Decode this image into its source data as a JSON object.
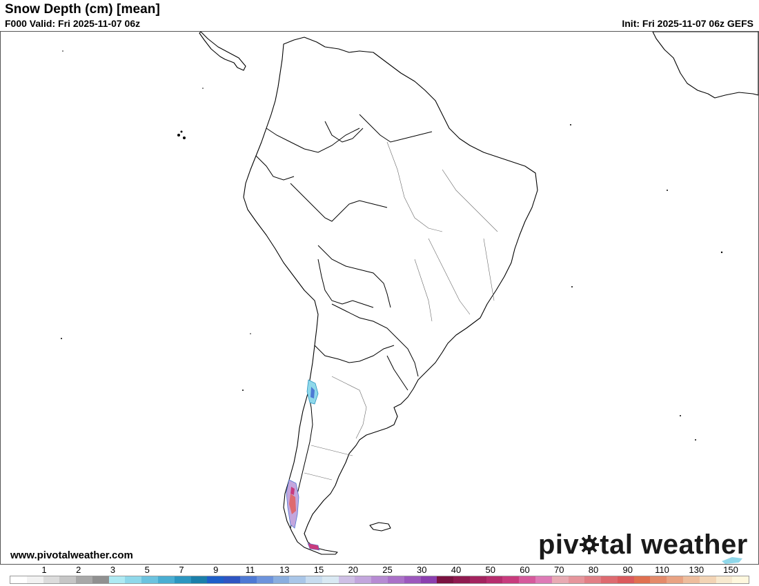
{
  "header": {
    "title": "Snow Depth (cm) [mean]",
    "valid": "F000 Valid: Fri 2025-11-07 06z",
    "init": "Init: Fri 2025-11-07 06z GEFS"
  },
  "footer": {
    "site": "www.pivotalweather.com",
    "brand_left": "piv",
    "brand_right": "tal weather"
  },
  "colorbar": {
    "labels": [
      "1",
      "2",
      "3",
      "5",
      "7",
      "9",
      "11",
      "13",
      "15",
      "20",
      "25",
      "30",
      "40",
      "50",
      "60",
      "70",
      "80",
      "90",
      "110",
      "130",
      "150"
    ],
    "colors": [
      "#ffffff",
      "#f2f2f2",
      "#dcdcdc",
      "#c6c6c6",
      "#a8a8a8",
      "#909090",
      "#aeeaf3",
      "#8fd8ea",
      "#6cc3df",
      "#4aaed2",
      "#2c96c0",
      "#1b7faa",
      "#1e5fc9",
      "#2f55c2",
      "#4e79d4",
      "#6d93dc",
      "#8aaedf",
      "#a9c6e8",
      "#c8dcef",
      "#d9e9f3",
      "#cfc0e6",
      "#c3a6dd",
      "#b78bd3",
      "#aa71c8",
      "#9c58bd",
      "#8b3faf",
      "#7a1240",
      "#8f1a4f",
      "#a3235e",
      "#b62d6d",
      "#c83b7d",
      "#d65a9c",
      "#de7ab6",
      "#e9aab3",
      "#e6959c",
      "#e27f86",
      "#de6a70",
      "#db5a5d",
      "#e07050",
      "#e48a6a",
      "#e9a383",
      "#eebd9d",
      "#f3d4b5",
      "#f8ead0",
      "#fff8de"
    ]
  },
  "map": {
    "region": "South America",
    "snow_color_light": "#8fd8ea",
    "snow_color_mid": "#4e79d4",
    "snow_color_high": "#c83b7d"
  }
}
